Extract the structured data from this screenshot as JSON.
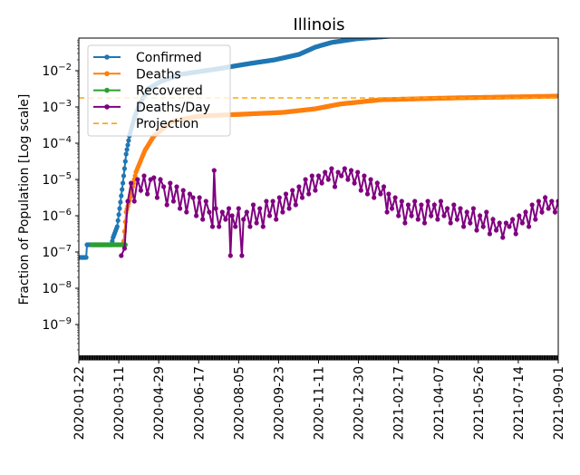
{
  "chart_data": {
    "type": "line",
    "title": "Illinois",
    "xlabel": "",
    "ylabel": "Fraction of Population [Log scale]",
    "yscale": "log",
    "ylim_log10": [
      -9.95,
      -1.1
    ],
    "x_start_date": "2020-01-22",
    "x_range_days": [
      0,
      588
    ],
    "x_ticks": [
      {
        "day": 0,
        "label": "2020-01-22"
      },
      {
        "day": 49,
        "label": "2020-03-11"
      },
      {
        "day": 98,
        "label": "2020-04-29"
      },
      {
        "day": 147,
        "label": "2020-06-17"
      },
      {
        "day": 196,
        "label": "2020-08-05"
      },
      {
        "day": 245,
        "label": "2020-09-23"
      },
      {
        "day": 294,
        "label": "2020-11-11"
      },
      {
        "day": 343,
        "label": "2020-12-30"
      },
      {
        "day": 392,
        "label": "2021-02-17"
      },
      {
        "day": 441,
        "label": "2021-04-07"
      },
      {
        "day": 490,
        "label": "2021-05-26"
      },
      {
        "day": 539,
        "label": "2021-07-14"
      },
      {
        "day": 588,
        "label": "2021-09-01"
      }
    ],
    "y_ticks": [
      {
        "log10": -2,
        "base": "10",
        "exp": "−2"
      },
      {
        "log10": -3,
        "base": "10",
        "exp": "−3"
      },
      {
        "log10": -4,
        "base": "10",
        "exp": "−4"
      },
      {
        "log10": -5,
        "base": "10",
        "exp": "−5"
      },
      {
        "log10": -6,
        "base": "10",
        "exp": "−6"
      },
      {
        "log10": -7,
        "base": "10",
        "exp": "−7"
      },
      {
        "log10": -8,
        "base": "10",
        "exp": "−8"
      },
      {
        "log10": -9,
        "base": "10",
        "exp": "−9"
      }
    ],
    "legend_position": "top-left",
    "series": [
      {
        "name": "Confirmed",
        "color": "#1f77b4",
        "style": "line-marker",
        "days": [
          0,
          9,
          10,
          40,
          42,
          47,
          50,
          54,
          58,
          62,
          68,
          75,
          85,
          100,
          125,
          170,
          210,
          240,
          270,
          290,
          310,
          340,
          380,
          420,
          480,
          588
        ],
        "log10": [
          -7.15,
          -7.15,
          -6.8,
          -6.8,
          -6.6,
          -6.3,
          -5.8,
          -5.1,
          -4.3,
          -3.8,
          -3.3,
          -2.9,
          -2.5,
          -2.3,
          -2.1,
          -1.95,
          -1.8,
          -1.7,
          -1.55,
          -1.35,
          -1.22,
          -1.12,
          -1.05,
          -1.0,
          -0.97,
          -0.95
        ]
      },
      {
        "name": "Deaths",
        "color": "#ff7f0e",
        "style": "line-marker",
        "days": [
          55,
          58,
          64,
          70,
          81,
          92,
          114,
          148,
          200,
          250,
          290,
          320,
          370,
          460,
          588
        ],
        "log10": [
          -6.7,
          -5.9,
          -5.4,
          -4.8,
          -4.2,
          -3.8,
          -3.4,
          -3.25,
          -3.2,
          -3.15,
          -3.05,
          -2.92,
          -2.8,
          -2.75,
          -2.7
        ]
      },
      {
        "name": "Recovered",
        "color": "#2ca02c",
        "style": "line-marker",
        "days": [
          16,
          57
        ],
        "log10": [
          -6.8,
          -6.8
        ]
      },
      {
        "name": "Deaths/Day",
        "color": "#800080",
        "style": "line-marker",
        "days": [
          52,
          56,
          60,
          64,
          68,
          72,
          76,
          80,
          84,
          88,
          92,
          96,
          100,
          104,
          108,
          112,
          116,
          120,
          124,
          128,
          132,
          136,
          140,
          144,
          148,
          152,
          156,
          160,
          164,
          166,
          168,
          172,
          176,
          180,
          184,
          186,
          188,
          192,
          196,
          200,
          202,
          206,
          210,
          214,
          218,
          222,
          226,
          230,
          234,
          238,
          242,
          246,
          250,
          254,
          258,
          262,
          266,
          270,
          274,
          278,
          282,
          286,
          290,
          294,
          298,
          302,
          306,
          310,
          314,
          318,
          322,
          326,
          330,
          334,
          338,
          342,
          346,
          350,
          354,
          358,
          362,
          366,
          370,
          374,
          378,
          380,
          384,
          388,
          392,
          396,
          400,
          404,
          408,
          412,
          416,
          420,
          424,
          428,
          432,
          436,
          440,
          444,
          448,
          452,
          456,
          460,
          464,
          468,
          472,
          476,
          480,
          484,
          488,
          492,
          496,
          500,
          504,
          508,
          512,
          516,
          520,
          524,
          528,
          532,
          536,
          540,
          544,
          548,
          552,
          556,
          560,
          564,
          568,
          572,
          576,
          580,
          584,
          588
        ],
        "log10": [
          -7.1,
          -6.9,
          -5.6,
          -5.1,
          -5.6,
          -5.0,
          -5.3,
          -4.9,
          -5.4,
          -5.0,
          -4.95,
          -5.5,
          -5.0,
          -5.2,
          -5.7,
          -5.1,
          -5.6,
          -5.2,
          -5.8,
          -5.3,
          -5.9,
          -5.4,
          -5.5,
          -6.0,
          -5.5,
          -6.1,
          -5.6,
          -5.9,
          -6.3,
          -4.75,
          -5.8,
          -6.3,
          -5.9,
          -6.1,
          -5.8,
          -7.1,
          -6.0,
          -6.3,
          -5.8,
          -7.1,
          -6.1,
          -5.9,
          -6.3,
          -5.7,
          -6.2,
          -5.8,
          -6.3,
          -5.6,
          -6.0,
          -5.6,
          -6.1,
          -5.5,
          -5.9,
          -5.4,
          -5.8,
          -5.3,
          -5.7,
          -5.2,
          -5.5,
          -5.0,
          -5.4,
          -4.9,
          -5.3,
          -4.9,
          -5.1,
          -4.8,
          -5.0,
          -4.7,
          -5.2,
          -4.8,
          -4.9,
          -4.7,
          -5.0,
          -4.75,
          -5.1,
          -4.8,
          -5.3,
          -4.9,
          -5.4,
          -5.0,
          -5.5,
          -5.1,
          -5.4,
          -5.2,
          -5.9,
          -5.4,
          -5.8,
          -5.5,
          -6.0,
          -5.6,
          -6.2,
          -5.7,
          -6.0,
          -5.6,
          -6.1,
          -5.7,
          -6.2,
          -5.6,
          -6.0,
          -5.7,
          -6.1,
          -5.6,
          -6.0,
          -5.8,
          -6.2,
          -5.7,
          -6.1,
          -5.8,
          -6.3,
          -5.9,
          -6.2,
          -5.8,
          -6.4,
          -6.0,
          -6.3,
          -5.9,
          -6.5,
          -6.1,
          -6.4,
          -6.2,
          -6.6,
          -6.2,
          -6.3,
          -6.1,
          -6.5,
          -6.0,
          -6.2,
          -5.9,
          -6.3,
          -5.7,
          -6.1,
          -5.6,
          -5.9,
          -5.5,
          -5.8,
          -5.6,
          -5.9,
          -5.6
        ]
      },
      {
        "name": "Projection",
        "color": "#ffa500",
        "style": "dashed",
        "log10_value": -2.75
      }
    ]
  }
}
